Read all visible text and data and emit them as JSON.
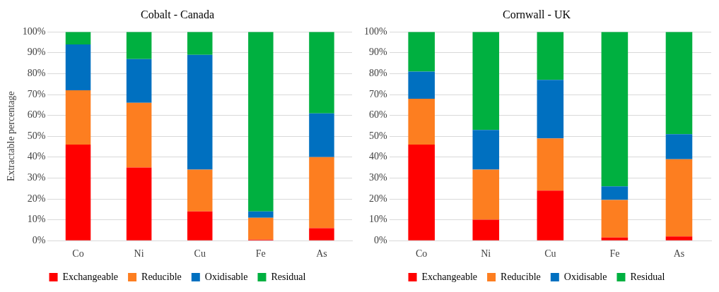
{
  "chart_data": [
    {
      "type": "bar",
      "title": "Cobalt - Canada",
      "ylabel": "Extractable percentage",
      "categories": [
        "Co",
        "Ni",
        "Cu",
        "Fe",
        "As"
      ],
      "stacked": true,
      "series": [
        {
          "name": "Exchangeable",
          "color": "#ff0000",
          "values": [
            46,
            35,
            14,
            0.5,
            6
          ]
        },
        {
          "name": "Reducible",
          "color": "#fd7e20",
          "values": [
            26,
            31,
            20,
            10.5,
            34
          ]
        },
        {
          "name": "Oxidisable",
          "color": "#0070c0",
          "values": [
            22,
            21,
            55,
            3,
            21
          ]
        },
        {
          "name": "Residual",
          "color": "#00b040",
          "values": [
            6,
            13,
            11,
            86,
            39
          ]
        }
      ],
      "ylim": [
        0,
        100
      ],
      "yticks": [
        {
          "value": 0,
          "label": "0%"
        },
        {
          "value": 10,
          "label": "10%"
        },
        {
          "value": 20,
          "label": "20%"
        },
        {
          "value": 30,
          "label": "30%"
        },
        {
          "value": 40,
          "label": "40%"
        },
        {
          "value": 50,
          "label": "50%"
        },
        {
          "value": 60,
          "label": "60%"
        },
        {
          "value": 70,
          "label": "70%"
        },
        {
          "value": 80,
          "label": "80%"
        },
        {
          "value": 90,
          "label": "90%"
        },
        {
          "value": 100,
          "label": "100%"
        }
      ],
      "grid": "y",
      "legend": "bottom"
    },
    {
      "type": "bar",
      "title": "Cornwall - UK",
      "categories": [
        "Co",
        "Ni",
        "Cu",
        "Fe",
        "As"
      ],
      "stacked": true,
      "series": [
        {
          "name": "Exchangeable",
          "color": "#ff0000",
          "values": [
            46,
            10,
            24,
            1.5,
            2
          ]
        },
        {
          "name": "Reducible",
          "color": "#fd7e20",
          "values": [
            22,
            24,
            25,
            18,
            37
          ]
        },
        {
          "name": "Oxidisable",
          "color": "#0070c0",
          "values": [
            13,
            19,
            28,
            6.5,
            12
          ]
        },
        {
          "name": "Residual",
          "color": "#00b040",
          "values": [
            19,
            47,
            23,
            74,
            49
          ]
        }
      ],
      "ylim": [
        0,
        100
      ],
      "yticks": [
        {
          "value": 0,
          "label": "0%"
        },
        {
          "value": 10,
          "label": "10%"
        },
        {
          "value": 20,
          "label": "20%"
        },
        {
          "value": 30,
          "label": "30%"
        },
        {
          "value": 40,
          "label": "40%"
        },
        {
          "value": 50,
          "label": "50%"
        },
        {
          "value": 60,
          "label": "60%"
        },
        {
          "value": 70,
          "label": "70%"
        },
        {
          "value": 80,
          "label": "80%"
        },
        {
          "value": 90,
          "label": "90%"
        },
        {
          "value": 100,
          "label": "100%"
        }
      ],
      "grid": "y",
      "legend": "bottom"
    }
  ]
}
